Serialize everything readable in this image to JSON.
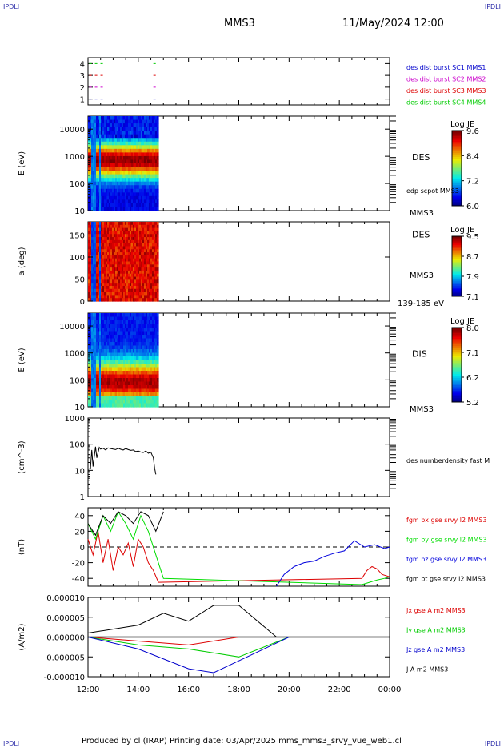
{
  "header": {
    "corner_label": "IPDLI",
    "spacecraft": "MMS3",
    "date_time": "11/May/2024 12:00"
  },
  "footer": {
    "credit": "Produced by cl (IRAP)   Printing date: 03/Apr/2025   mms_mms3_srvy_vue_web1.cl"
  },
  "colors": {
    "c1": "#0000cc",
    "c2": "#cc00cc",
    "c3": "#dd0000",
    "c4": "#00cc00",
    "bx": "#dd0000",
    "by": "#00dd00",
    "bz": "#0000dd",
    "bt": "#000000"
  },
  "time_axis": {
    "ticks": [
      "12:00",
      "14:00",
      "16:00",
      "18:00",
      "20:00",
      "22:00",
      "00:00"
    ],
    "range_hours": [
      0,
      12
    ]
  },
  "chart_data": [
    {
      "type": "line",
      "panel": "burst",
      "yticks": [
        "1",
        "2",
        "3",
        "4"
      ],
      "ylim": [
        0.5,
        4.5
      ],
      "series": [
        {
          "name": "des dist burst SC1 MMS1",
          "y": 1,
          "color": "#0000cc",
          "intervals": [
            [
              0.05,
              0.7
            ],
            [
              2.6,
              2.75
            ]
          ]
        },
        {
          "name": "des dist burst SC2 MMS2",
          "y": 2,
          "color": "#cc00cc",
          "intervals": [
            [
              0.05,
              0.7
            ],
            [
              2.6,
              2.75
            ]
          ]
        },
        {
          "name": "des dist burst SC3 MMS3",
          "y": 3,
          "color": "#dd0000",
          "intervals": [
            [
              0.05,
              0.7
            ],
            [
              2.6,
              2.75
            ]
          ]
        },
        {
          "name": "des dist burst SC4 MMS4",
          "y": 4,
          "color": "#00cc00",
          "intervals": [
            [
              0.05,
              0.7
            ],
            [
              2.6,
              2.75
            ]
          ]
        }
      ]
    },
    {
      "type": "heatmap",
      "panel": "des_energy",
      "ylabel": "E (eV)",
      "yscale": "log",
      "yticks": [
        "10",
        "100",
        "1000",
        "10000"
      ],
      "ylim": [
        10,
        30000
      ],
      "data_end_hours": 2.8,
      "labels": [
        "DES",
        "MMS3"
      ],
      "extra_label": "edp scpot MMS3",
      "colorbar": {
        "title": "Log JE",
        "ticks": [
          "9.6",
          "8.4",
          "7.2",
          "6.0"
        ],
        "range": [
          6.0,
          9.6
        ]
      }
    },
    {
      "type": "heatmap",
      "panel": "des_pitch",
      "ylabel": "a (deg)",
      "yticks": [
        "0",
        "50",
        "100",
        "150"
      ],
      "ylim": [
        0,
        180
      ],
      "data_end_hours": 2.8,
      "labels": [
        "DES",
        "MMS3"
      ],
      "energy_range_label": "139-185 eV",
      "colorbar": {
        "title": "Log JE",
        "ticks": [
          "9.5",
          "8.7",
          "7.9",
          "7.1"
        ],
        "range": [
          7.1,
          9.5
        ]
      }
    },
    {
      "type": "heatmap",
      "panel": "dis_energy",
      "ylabel": "E (eV)",
      "yscale": "log",
      "yticks": [
        "10",
        "100",
        "1000",
        "10000"
      ],
      "ylim": [
        10,
        30000
      ],
      "data_end_hours": 2.8,
      "labels": [
        "DIS",
        "MMS3"
      ],
      "colorbar": {
        "title": "Log JE",
        "ticks": [
          "8.0",
          "7.1",
          "6.2",
          "5.2"
        ],
        "range": [
          5.2,
          8.0
        ]
      }
    },
    {
      "type": "line",
      "panel": "density",
      "ylabel": "(cm^-3)",
      "yscale": "log",
      "yticks": [
        "1",
        "10",
        "100",
        "1000"
      ],
      "ylim": [
        1,
        1000
      ],
      "series": [
        {
          "name": "des numberdensity fast M",
          "color": "#000000",
          "x": [
            0.0,
            0.1,
            0.15,
            0.2,
            0.3,
            0.35,
            0.45,
            0.5,
            0.6,
            0.7,
            0.8,
            0.9,
            1.0,
            1.1,
            1.2,
            1.3,
            1.4,
            1.5,
            1.6,
            1.7,
            1.8,
            1.9,
            2.0,
            2.1,
            2.2,
            2.3,
            2.4,
            2.5,
            2.6,
            2.65,
            2.7
          ],
          "y": [
            11,
            12,
            60,
            14,
            80,
            30,
            75,
            65,
            70,
            60,
            72,
            68,
            65,
            62,
            70,
            64,
            60,
            68,
            62,
            58,
            60,
            52,
            55,
            50,
            48,
            55,
            45,
            50,
            30,
            12,
            7
          ]
        }
      ]
    },
    {
      "type": "line",
      "panel": "magnetic_field",
      "ylabel": "(nT)",
      "yticks": [
        "-40",
        "-20",
        "0",
        "20",
        "40"
      ],
      "ylim": [
        -50,
        50
      ],
      "series": [
        {
          "name": "fgm bx gse srvy l2 MMS3",
          "color": "#dd0000",
          "x": [
            0.0,
            0.2,
            0.4,
            0.6,
            0.8,
            1.0,
            1.2,
            1.4,
            1.6,
            1.8,
            2.0,
            2.2,
            2.4,
            2.6,
            2.8,
            10.9,
            11.1,
            11.3,
            11.5,
            11.7,
            12.0
          ],
          "y": [
            10,
            -10,
            20,
            -20,
            10,
            -30,
            0,
            -10,
            5,
            -25,
            10,
            0,
            -20,
            -30,
            -45,
            -40,
            -30,
            -25,
            -28,
            -35,
            -38
          ]
        },
        {
          "name": "fgm by gse srvy l2 MMS3",
          "color": "#00dd00",
          "x": [
            0.0,
            0.3,
            0.6,
            0.9,
            1.2,
            1.5,
            1.8,
            2.1,
            2.4,
            2.7,
            3.0,
            10.9,
            11.2,
            11.5,
            11.8,
            12.0
          ],
          "y": [
            30,
            10,
            40,
            20,
            45,
            30,
            10,
            40,
            20,
            -10,
            -40,
            -48,
            -45,
            -42,
            -40,
            -38
          ]
        },
        {
          "name": "fgm bz gse srvy l2 MMS3",
          "color": "#0000dd",
          "x": [
            7.5,
            7.8,
            8.2,
            8.6,
            9.0,
            9.4,
            9.8,
            10.2,
            10.6,
            11.0,
            11.4,
            11.8,
            12.0
          ],
          "y": [
            -50,
            -35,
            -25,
            -20,
            -18,
            -12,
            -8,
            -5,
            8,
            0,
            3,
            -2,
            0
          ]
        },
        {
          "name": "fgm bt gse srvy l2 MMS3",
          "color": "#000000",
          "x": [
            0.0,
            0.3,
            0.6,
            0.9,
            1.2,
            1.5,
            1.8,
            2.1,
            2.4,
            2.7,
            3.0
          ],
          "y": [
            30,
            15,
            40,
            30,
            45,
            40,
            30,
            45,
            40,
            20,
            45
          ]
        }
      ]
    },
    {
      "type": "line",
      "panel": "current_density",
      "ylabel": "(A/m2)",
      "yticks": [
        "-0.000010",
        "-0.000005",
        "0.000000",
        "0.000005",
        "0.000010"
      ],
      "ylim": [
        -1e-05,
        1e-05
      ],
      "series": [
        {
          "name": "Jx gse A m2 MMS3",
          "color": "#dd0000",
          "x": [
            0,
            2,
            4,
            6,
            8,
            12
          ],
          "y": [
            0,
            -1e-06,
            -2e-06,
            0,
            0,
            0
          ]
        },
        {
          "name": "Jy gse A m2 MMS3",
          "color": "#00cc00",
          "x": [
            0,
            2,
            4,
            6,
            8,
            12
          ],
          "y": [
            0,
            -2e-06,
            -3e-06,
            -5e-06,
            0,
            0
          ]
        },
        {
          "name": "Jz gse A m2 MMS3",
          "color": "#0000cc",
          "x": [
            0,
            2,
            4,
            5,
            6,
            8,
            12
          ],
          "y": [
            0,
            -3e-06,
            -8e-06,
            -9e-06,
            -6e-06,
            0,
            0
          ]
        },
        {
          "name": "J A m2 MMS3",
          "color": "#000000",
          "x": [
            0,
            2,
            3,
            4,
            5,
            6,
            7.5,
            12
          ],
          "y": [
            1e-06,
            3e-06,
            6e-06,
            4e-06,
            8e-06,
            8e-06,
            0,
            0
          ]
        }
      ]
    }
  ]
}
